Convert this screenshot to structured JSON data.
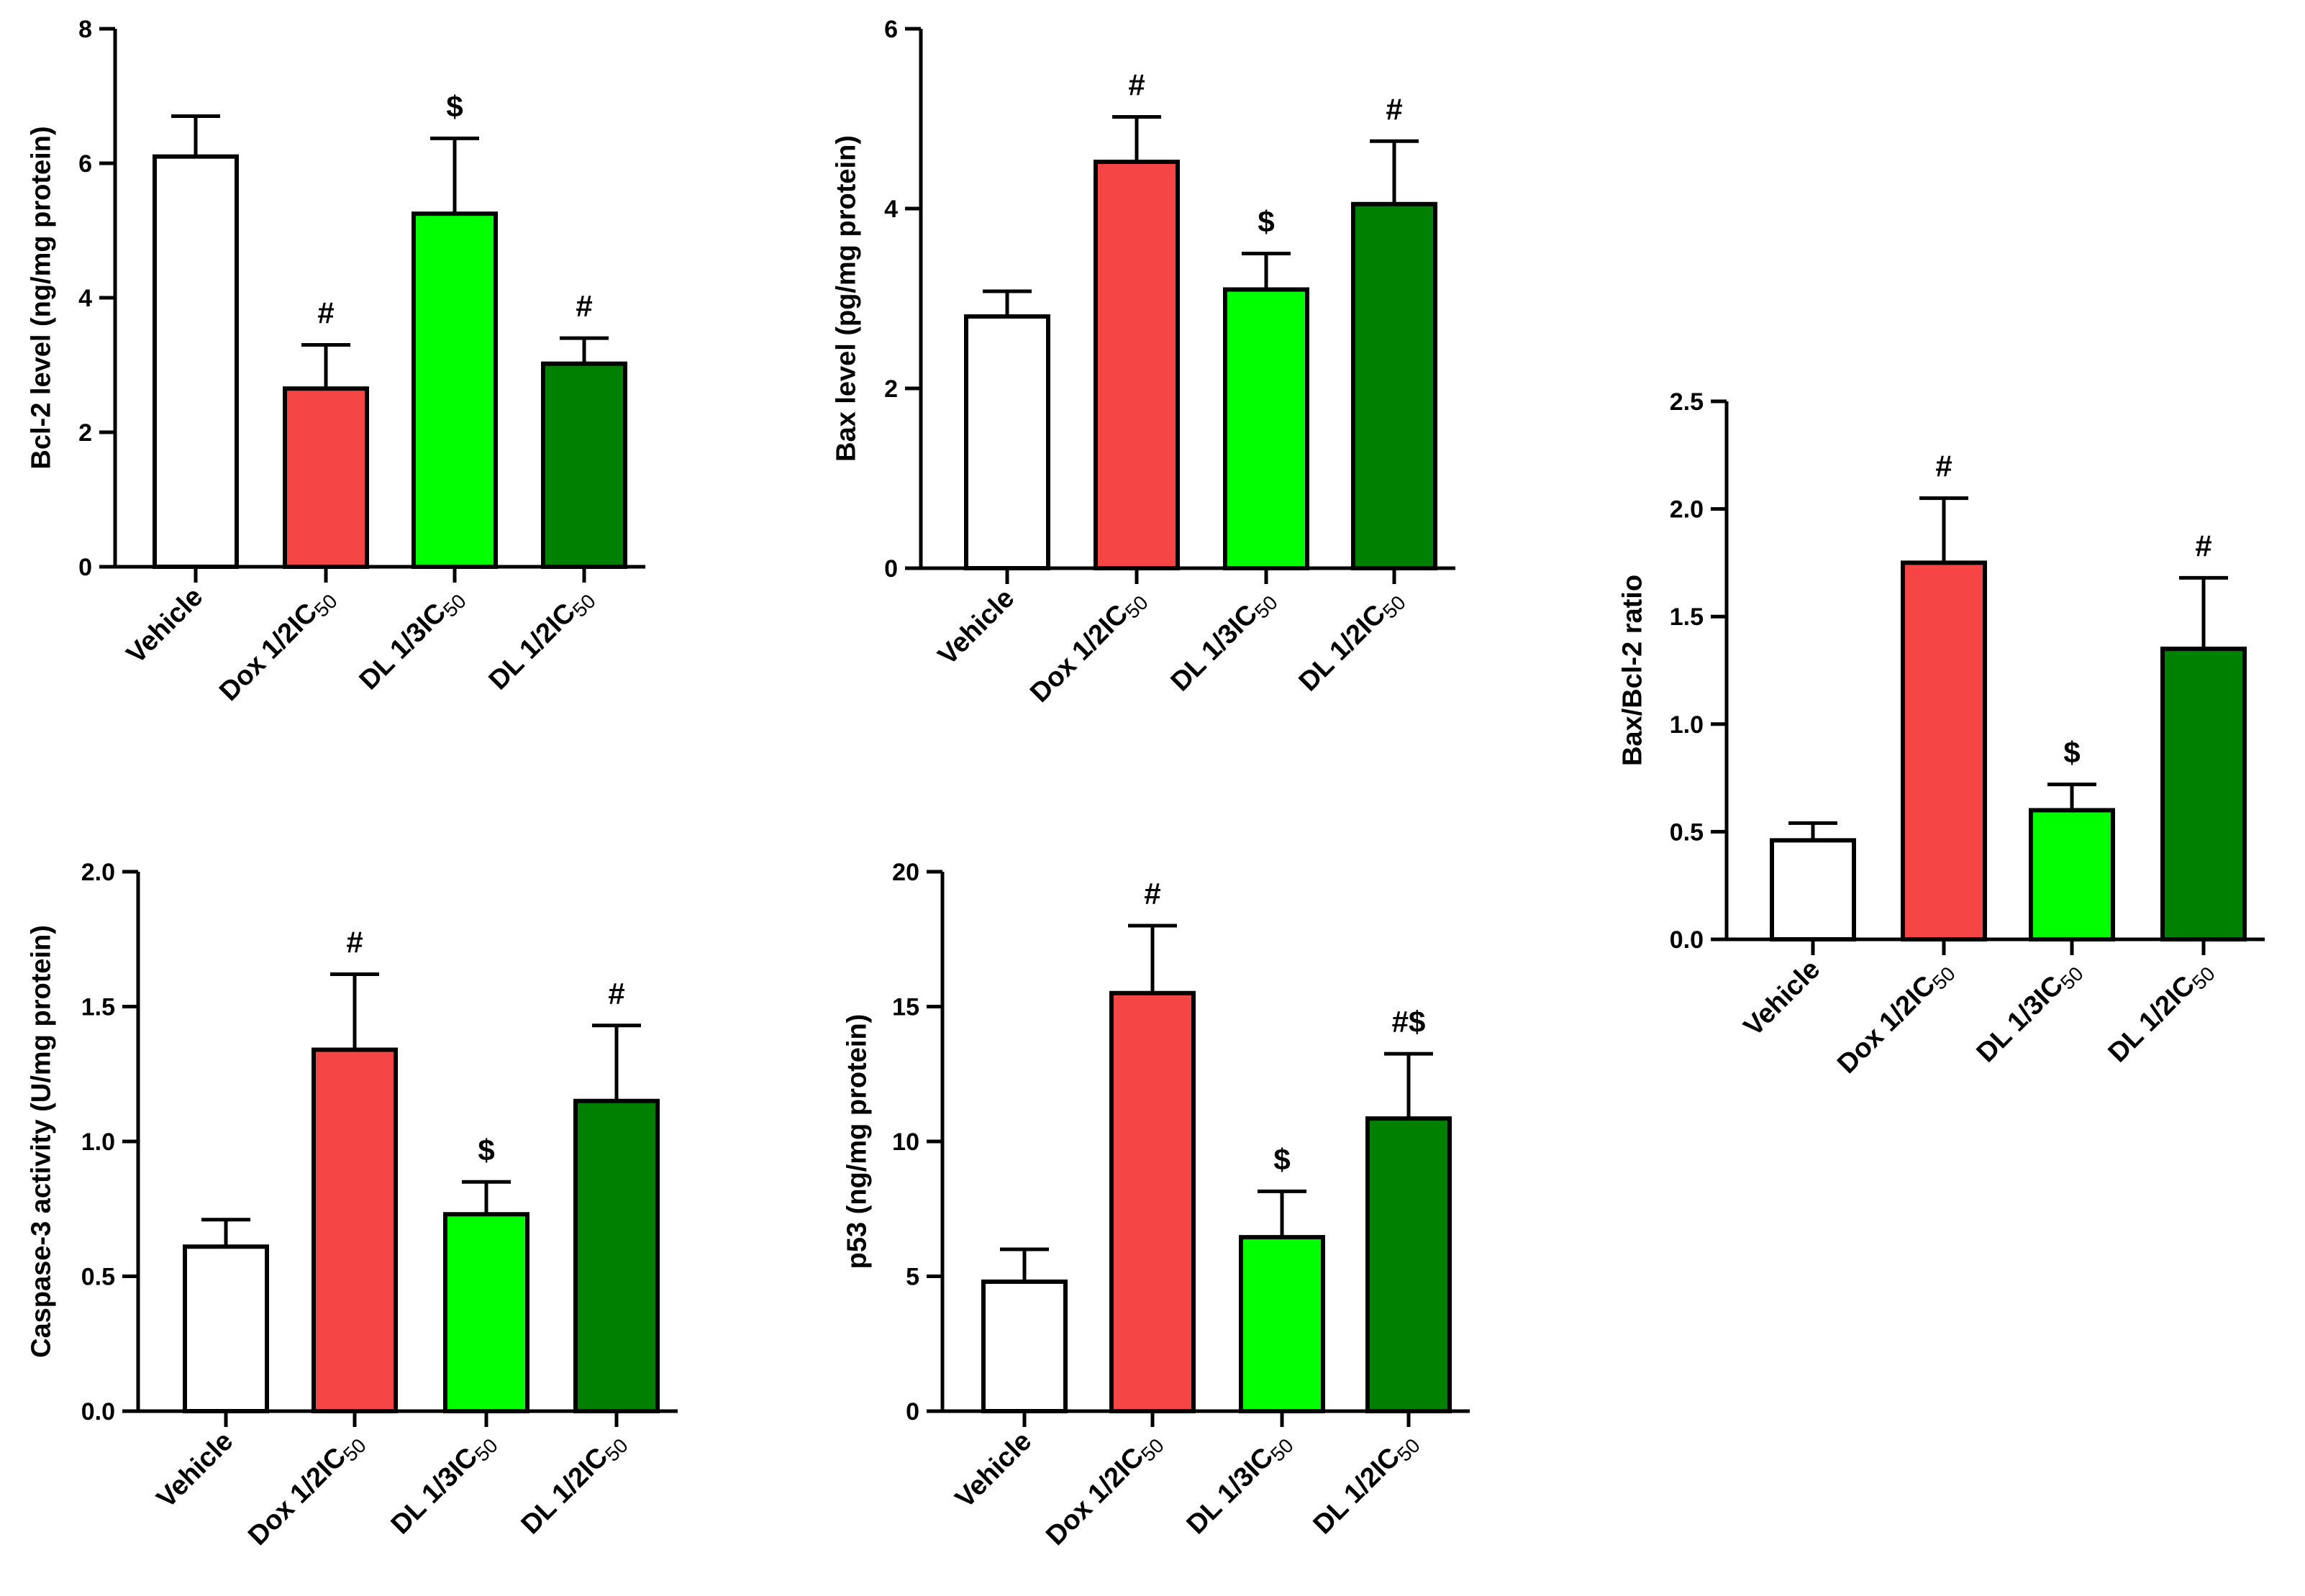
{
  "bar_colors": {
    "Vehicle": "#ffffff",
    "Dox 1/2IC50": "#f64545",
    "DL 1/3IC50": "#00ff00",
    "DL 1/2IC50": "#008000"
  },
  "chart_data": [
    {
      "id": "bcl2",
      "type": "bar",
      "title": "",
      "ylabel": "Bcl-2 level (ng/mg protein)",
      "xlabel": "",
      "categories": [
        "Vehicle",
        "Dox 1/2IC50",
        "DL 1/3IC50",
        "DL 1/2IC50"
      ],
      "category_labels": [
        {
          "main": "Vehicle",
          "sub": ""
        },
        {
          "main": "Dox 1/2IC",
          "sub": "50"
        },
        {
          "main": "DL 1/3IC",
          "sub": "50"
        },
        {
          "main": "DL 1/2IC",
          "sub": "50"
        }
      ],
      "values": [
        6.1,
        2.65,
        5.25,
        3.02
      ],
      "errors": [
        0.6,
        0.65,
        1.12,
        0.38
      ],
      "significance": [
        "",
        "#",
        "$",
        "#"
      ],
      "ylim": [
        0,
        8
      ],
      "yticks": [
        "0",
        "2",
        "4",
        "6",
        "8"
      ]
    },
    {
      "id": "bax",
      "type": "bar",
      "title": "",
      "ylabel": "Bax level (pg/mg protein)",
      "xlabel": "",
      "categories": [
        "Vehicle",
        "Dox 1/2IC50",
        "DL 1/3IC50",
        "DL 1/2IC50"
      ],
      "category_labels": [
        {
          "main": "Vehicle",
          "sub": ""
        },
        {
          "main": "Dox 1/2IC",
          "sub": "50"
        },
        {
          "main": "DL 1/3IC",
          "sub": "50"
        },
        {
          "main": "DL 1/2IC",
          "sub": "50"
        }
      ],
      "values": [
        2.8,
        4.52,
        3.1,
        4.05
      ],
      "errors": [
        0.28,
        0.5,
        0.4,
        0.7
      ],
      "significance": [
        "",
        "#",
        "$",
        "#"
      ],
      "ylim": [
        0,
        6
      ],
      "yticks": [
        "0",
        "2",
        "4",
        "6"
      ]
    },
    {
      "id": "ratio",
      "type": "bar",
      "title": "",
      "ylabel": "Bax/Bcl-2 ratio",
      "xlabel": "",
      "categories": [
        "Vehicle",
        "Dox 1/2IC50",
        "DL 1/3IC50",
        "DL 1/2IC50"
      ],
      "category_labels": [
        {
          "main": "Vehicle",
          "sub": ""
        },
        {
          "main": "Dox 1/2IC",
          "sub": "50"
        },
        {
          "main": "DL 1/3IC",
          "sub": "50"
        },
        {
          "main": "DL 1/2IC",
          "sub": "50"
        }
      ],
      "values": [
        0.46,
        1.75,
        0.6,
        1.35
      ],
      "errors": [
        0.08,
        0.3,
        0.12,
        0.33
      ],
      "significance": [
        "",
        "#",
        "$",
        "#"
      ],
      "ylim": [
        0,
        2.5
      ],
      "yticks": [
        "0.0",
        "0.5",
        "1.0",
        "1.5",
        "2.0",
        "2.5"
      ]
    },
    {
      "id": "caspase3",
      "type": "bar",
      "title": "",
      "ylabel": "Caspase-3 activity (U/mg protein)",
      "xlabel": "",
      "categories": [
        "Vehicle",
        "Dox 1/2IC50",
        "DL 1/3IC50",
        "DL 1/2IC50"
      ],
      "category_labels": [
        {
          "main": "Vehicle",
          "sub": ""
        },
        {
          "main": "Dox 1/2IC",
          "sub": "50"
        },
        {
          "main": "DL 1/3IC",
          "sub": "50"
        },
        {
          "main": "DL 1/2IC",
          "sub": "50"
        }
      ],
      "values": [
        0.61,
        1.34,
        0.73,
        1.15
      ],
      "errors": [
        0.1,
        0.28,
        0.12,
        0.28
      ],
      "significance": [
        "",
        "#",
        "$",
        "#"
      ],
      "ylim": [
        0,
        2.0
      ],
      "yticks": [
        "0.0",
        "0.5",
        "1.0",
        "1.5",
        "2.0"
      ]
    },
    {
      "id": "p53",
      "type": "bar",
      "title": "",
      "ylabel": "p53 (ng/mg protein)",
      "xlabel": "",
      "categories": [
        "Vehicle",
        "Dox 1/2IC50",
        "DL 1/3IC50",
        "DL 1/2IC50"
      ],
      "category_labels": [
        {
          "main": "Vehicle",
          "sub": ""
        },
        {
          "main": "Dox 1/2IC",
          "sub": "50"
        },
        {
          "main": "DL 1/3IC",
          "sub": "50"
        },
        {
          "main": "DL 1/2IC",
          "sub": "50"
        }
      ],
      "values": [
        4.8,
        15.5,
        6.45,
        10.85
      ],
      "errors": [
        1.2,
        2.5,
        1.7,
        2.4
      ],
      "significance": [
        "",
        "#",
        "$",
        "#$"
      ],
      "ylim": [
        0,
        20
      ],
      "yticks": [
        "0",
        "5",
        "10",
        "15",
        "20"
      ]
    }
  ]
}
